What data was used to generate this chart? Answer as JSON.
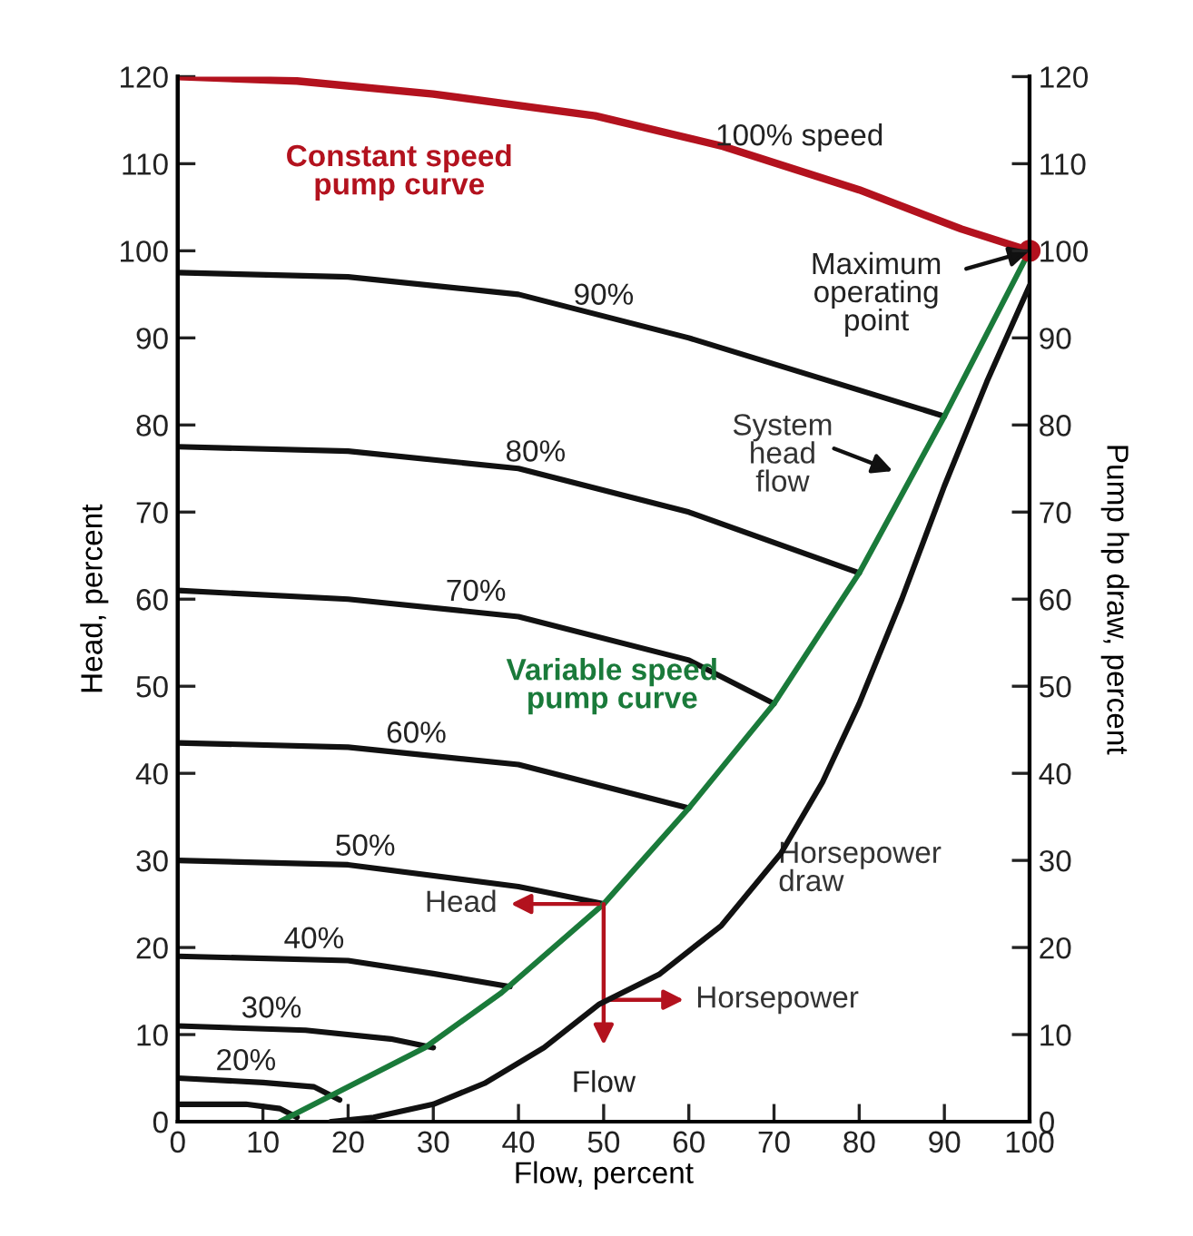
{
  "chart_data": {
    "type": "line",
    "xlabel": "Flow, percent",
    "ylabel": "Head, percent",
    "y2label": "Pump hp draw, percent",
    "xlim": [
      0,
      100
    ],
    "xticks": [
      0,
      10,
      20,
      30,
      40,
      50,
      60,
      70,
      80,
      90,
      100
    ],
    "ylim": [
      0,
      120
    ],
    "yticks": [
      0,
      10,
      20,
      30,
      40,
      50,
      60,
      70,
      80,
      90,
      100,
      110,
      120
    ],
    "y2lim": [
      0,
      120
    ],
    "y2ticks": [
      0,
      10,
      20,
      30,
      40,
      50,
      60,
      70,
      80,
      90,
      100,
      110,
      120
    ],
    "series": [
      {
        "name": "100% speed",
        "color": "#b3121e",
        "x": [
          0,
          14,
          30,
          49,
          64,
          80,
          92,
          100
        ],
        "values": [
          120,
          119.5,
          118,
          115.5,
          112,
          107,
          102.5,
          100
        ]
      },
      {
        "name": "90%",
        "color": "#111111",
        "x": [
          0,
          20,
          40,
          60,
          80,
          90
        ],
        "values": [
          97.5,
          97,
          95,
          90,
          84,
          81
        ]
      },
      {
        "name": "80%",
        "color": "#111111",
        "x": [
          0,
          20,
          40,
          60,
          80
        ],
        "values": [
          77.5,
          77,
          75,
          70,
          63
        ]
      },
      {
        "name": "70%",
        "color": "#111111",
        "x": [
          0,
          20,
          40,
          60,
          70
        ],
        "values": [
          61,
          60,
          58,
          53,
          48
        ]
      },
      {
        "name": "60%",
        "color": "#111111",
        "x": [
          0,
          20,
          40,
          60
        ],
        "values": [
          43.5,
          43,
          41,
          36
        ]
      },
      {
        "name": "50%",
        "color": "#111111",
        "x": [
          0,
          20,
          40,
          50
        ],
        "values": [
          30,
          29.5,
          27,
          25
        ]
      },
      {
        "name": "40%",
        "color": "#111111",
        "x": [
          0,
          20,
          30,
          39
        ],
        "values": [
          19,
          18.5,
          17,
          15.5
        ]
      },
      {
        "name": "30%",
        "color": "#111111",
        "x": [
          0,
          15,
          25,
          30
        ],
        "values": [
          11,
          10.5,
          9.5,
          8.5
        ]
      },
      {
        "name": "20%",
        "color": "#111111",
        "x": [
          0,
          10,
          16,
          19
        ],
        "values": [
          5,
          4.5,
          4,
          2.5
        ]
      },
      {
        "color": "#111111",
        "x": [
          0,
          8,
          12,
          14
        ],
        "values": [
          2,
          2,
          1.5,
          0.5
        ]
      },
      {
        "color": "#1a7a3a",
        "x": [
          12,
          18,
          29,
          38,
          50,
          60,
          70,
          80,
          90,
          100
        ],
        "values": [
          0,
          3,
          8.5,
          14.8,
          25,
          36,
          48,
          63,
          81,
          100
        ]
      },
      {
        "color": "#111111",
        "axis": "y2",
        "x": [
          18,
          23,
          30,
          36,
          43,
          49.5,
          56.5,
          63.8,
          70.8,
          75.7,
          80,
          85,
          90,
          95,
          100
        ],
        "values": [
          0,
          0.5,
          2,
          4.4,
          8.5,
          13.5,
          16.9,
          22.5,
          30.8,
          39,
          48,
          60,
          73,
          85,
          96
        ]
      },
      {
        "type": "scatter",
        "color": "#b3121e",
        "x": [
          100
        ],
        "values": [
          100
        ]
      }
    ],
    "annotations": [
      "Constant speed\npump curve",
      "Variable speed\npump curve",
      "Horsepower\ndraw",
      {
        "text": "Maximum\noperating\npoint",
        "x": 100,
        "y": 100
      },
      "System\nhead\nflow",
      "Head",
      {
        "text": "Flow",
        "x": 50,
        "y": 25
      },
      "Horsepower"
    ]
  }
}
